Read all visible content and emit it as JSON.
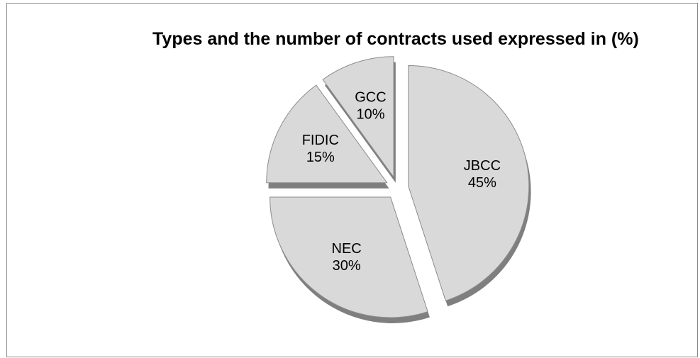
{
  "chart_data": {
    "type": "pie",
    "title": "Types and the number of contracts used expressed in (%)",
    "slices": [
      {
        "name": "JBCC",
        "value": 45,
        "label": "45%"
      },
      {
        "name": "NEC",
        "value": 30,
        "label": "30%"
      },
      {
        "name": "FIDIC",
        "value": 15,
        "label": "15%"
      },
      {
        "name": "GCC",
        "value": 10,
        "label": "10%"
      }
    ],
    "legend": "none",
    "colors": {
      "fill": "#d9d9d9",
      "edge": "#8c8c8c",
      "shadow": "#7f7f7f"
    }
  }
}
